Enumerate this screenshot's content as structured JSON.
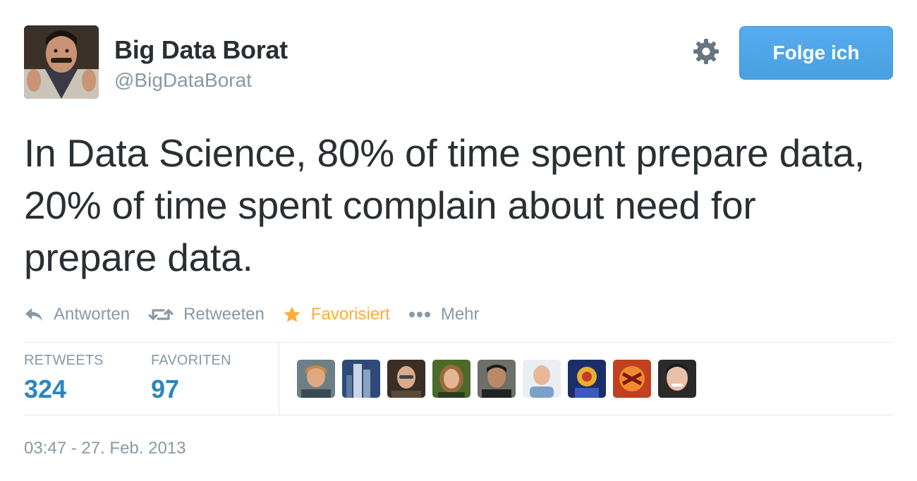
{
  "user": {
    "name": "Big Data Borat",
    "handle": "@BigDataBorat",
    "avatar_icon": "profile-photo"
  },
  "header": {
    "settings_icon": "gear-icon",
    "follow_label": "Folge ich",
    "follow_color": "#55acee"
  },
  "tweet": {
    "text": "In Data Science, 80% of time spent prepare data, 20% of time spent complain about need for prepare data."
  },
  "actions": [
    {
      "icon": "reply-icon",
      "label": "Antworten"
    },
    {
      "icon": "retweet-icon",
      "label": "Retweeten"
    },
    {
      "icon": "star-icon",
      "label": "Favorisiert",
      "color": "#ffac33"
    },
    {
      "icon": "more-dots-icon",
      "label": "Mehr"
    }
  ],
  "stats": {
    "retweets_label": "RETWEETS",
    "retweets_value": "324",
    "favorites_label": "FAVORITEN",
    "favorites_value": "97",
    "value_color": "#2a86c0"
  },
  "favoriters": [
    {
      "icon": "user-avatar"
    },
    {
      "icon": "user-avatar"
    },
    {
      "icon": "user-avatar"
    },
    {
      "icon": "user-avatar"
    },
    {
      "icon": "user-avatar"
    },
    {
      "icon": "user-avatar"
    },
    {
      "icon": "user-avatar"
    },
    {
      "icon": "user-avatar"
    },
    {
      "icon": "user-avatar"
    }
  ],
  "timestamp": "03:47 - 27. Feb. 2013"
}
